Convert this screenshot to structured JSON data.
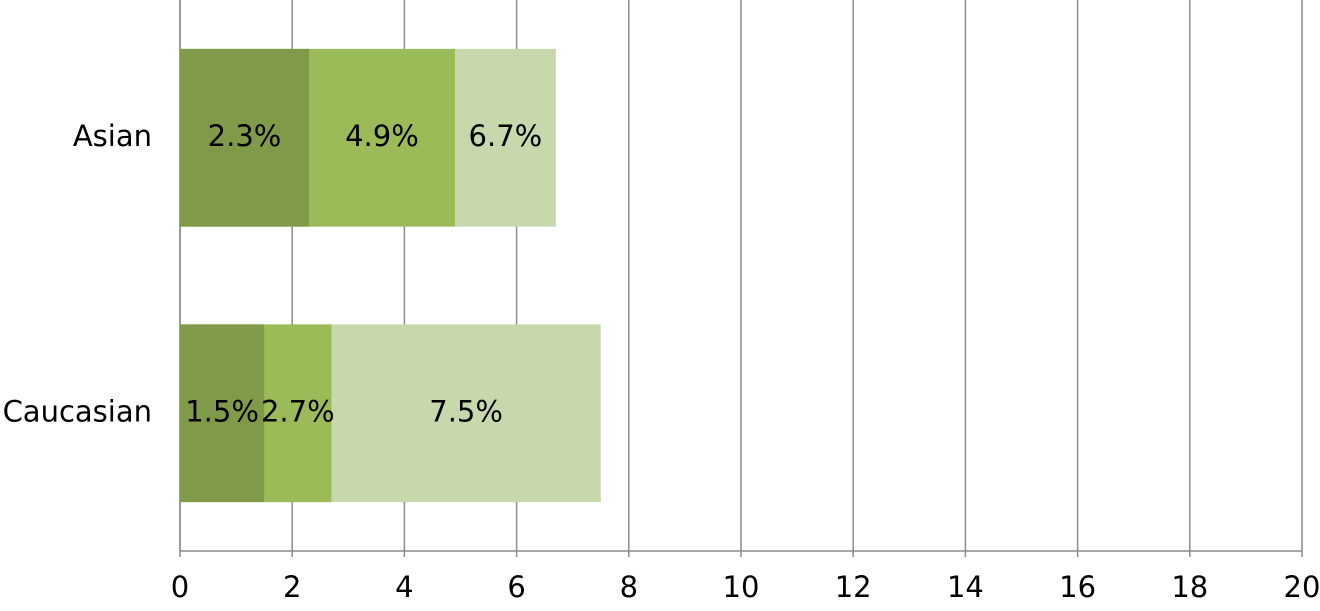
{
  "chart_data": {
    "type": "bar",
    "orientation": "horizontal",
    "overlap": true,
    "categories": [
      "Asian",
      "Caucasian"
    ],
    "series": [
      {
        "color": "#7f9a48",
        "values": [
          2.3,
          1.5
        ],
        "value_labels": [
          "2.3%",
          "1.5%"
        ]
      },
      {
        "color": "#9bbb59",
        "values": [
          4.9,
          2.7
        ],
        "value_labels": [
          "4.9%",
          "2.7%"
        ]
      },
      {
        "color": "#c7d8ad",
        "values": [
          6.7,
          7.5
        ],
        "value_labels": [
          "6.7%",
          "7.5%"
        ]
      }
    ],
    "xlim": [
      0,
      20
    ],
    "xticks": [
      0,
      2,
      4,
      6,
      8,
      10,
      12,
      14,
      16,
      18,
      20
    ],
    "grid": true
  }
}
